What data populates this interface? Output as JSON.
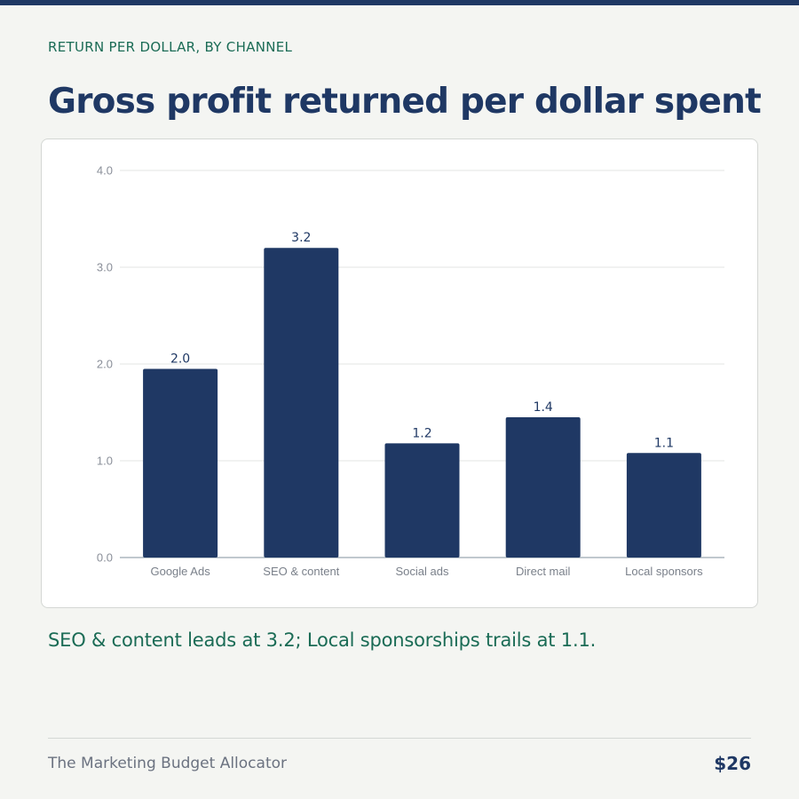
{
  "header": {
    "eyebrow": "RETURN PER DOLLAR, BY CHANNEL",
    "title": "Gross profit returned per dollar spent"
  },
  "caption": "SEO & content leads at 3.2; Local sponsorships trails at 1.1.",
  "footer": {
    "brand": "The Marketing Budget Allocator",
    "price": "$26"
  },
  "colors": {
    "bar": "#1f3864",
    "accent": "#1a6b55"
  },
  "chart_data": {
    "type": "bar",
    "categories": [
      "Google Ads",
      "SEO & content",
      "Social ads",
      "Direct mail",
      "Local sponsors"
    ],
    "values": [
      1.95,
      3.2,
      1.18,
      1.45,
      1.08
    ],
    "data_labels": [
      "2.0",
      "3.2",
      "1.2",
      "1.4",
      "1.1"
    ],
    "yticks": [
      "0.0",
      "1.0",
      "2.0",
      "3.0",
      "4.0"
    ],
    "ylim": [
      0,
      4
    ],
    "grid": true,
    "legend": "none"
  }
}
